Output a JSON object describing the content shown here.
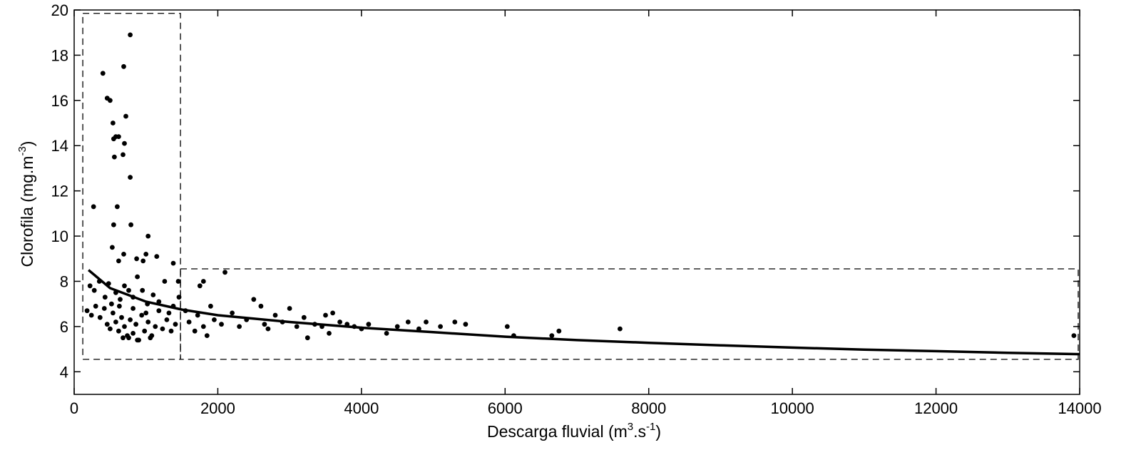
{
  "chart_data": {
    "type": "scatter",
    "title": "",
    "xlabel": {
      "base": "Descarga fluvial (m",
      "sup1": "3",
      "mid": ".s",
      "sup2": "-1",
      "end": ")"
    },
    "ylabel": {
      "base": "Clorofila (mg.m",
      "sup": "-3",
      "end": ")"
    },
    "xlim": [
      0,
      14000
    ],
    "ylim": [
      3,
      20
    ],
    "xticks": [
      "0",
      "2000",
      "4000",
      "6000",
      "8000",
      "10000",
      "12000",
      "14000"
    ],
    "yticks": [
      "4",
      "6",
      "8",
      "10",
      "12",
      "14",
      "16",
      "18",
      "20"
    ],
    "grid": false,
    "colors": {
      "points": "#000000",
      "fit": "#000000",
      "boxes": "#000000",
      "axes": "#000000"
    },
    "fit_curve": {
      "type": "power",
      "x": [
        200,
        500,
        1000,
        1500,
        2000,
        3000,
        4000,
        5000,
        6000,
        7000,
        8000,
        9000,
        10000,
        11000,
        12000,
        13000,
        14000
      ],
      "y": [
        8.5,
        7.7,
        7.1,
        6.75,
        6.5,
        6.2,
        5.95,
        5.75,
        5.55,
        5.4,
        5.28,
        5.17,
        5.07,
        4.98,
        4.91,
        4.84,
        4.78
      ]
    },
    "regions": [
      {
        "x0": 120,
        "x1": 1480,
        "y0": 4.55,
        "y1": 19.85
      },
      {
        "x0": 1480,
        "x1": 13980,
        "y0": 4.55,
        "y1": 8.55
      }
    ],
    "points": [
      [
        270,
        11.3
      ],
      [
        400,
        17.2
      ],
      [
        460,
        16.1
      ],
      [
        500,
        16.0
      ],
      [
        540,
        15.0
      ],
      [
        580,
        14.4
      ],
      [
        550,
        14.3
      ],
      [
        560,
        13.5
      ],
      [
        620,
        14.4
      ],
      [
        700,
        14.1
      ],
      [
        680,
        13.6
      ],
      [
        720,
        15.3
      ],
      [
        690,
        17.5
      ],
      [
        780,
        18.9
      ],
      [
        780,
        12.6
      ],
      [
        600,
        11.3
      ],
      [
        550,
        10.5
      ],
      [
        790,
        10.5
      ],
      [
        1030,
        10.0
      ],
      [
        530,
        9.5
      ],
      [
        690,
        9.2
      ],
      [
        1000,
        9.2
      ],
      [
        620,
        8.9
      ],
      [
        870,
        9.0
      ],
      [
        960,
        8.9
      ],
      [
        1150,
        9.1
      ],
      [
        1380,
        8.8
      ],
      [
        1450,
        8.0
      ],
      [
        220,
        7.8
      ],
      [
        280,
        7.6
      ],
      [
        350,
        8.0
      ],
      [
        430,
        7.3
      ],
      [
        480,
        7.9
      ],
      [
        520,
        7.0
      ],
      [
        580,
        7.5
      ],
      [
        640,
        7.2
      ],
      [
        700,
        7.8
      ],
      [
        760,
        7.6
      ],
      [
        820,
        7.3
      ],
      [
        880,
        8.2
      ],
      [
        950,
        7.6
      ],
      [
        1020,
        7.0
      ],
      [
        1100,
        7.4
      ],
      [
        1180,
        7.1
      ],
      [
        1260,
        8.0
      ],
      [
        1320,
        6.6
      ],
      [
        1380,
        6.9
      ],
      [
        1460,
        7.3
      ],
      [
        180,
        6.7
      ],
      [
        240,
        6.5
      ],
      [
        300,
        6.9
      ],
      [
        360,
        6.4
      ],
      [
        420,
        6.8
      ],
      [
        460,
        6.1
      ],
      [
        500,
        5.9
      ],
      [
        540,
        6.6
      ],
      [
        580,
        6.2
      ],
      [
        620,
        5.8
      ],
      [
        660,
        6.4
      ],
      [
        700,
        6.0
      ],
      [
        740,
        5.6
      ],
      [
        780,
        6.3
      ],
      [
        820,
        5.7
      ],
      [
        860,
        6.1
      ],
      [
        900,
        5.4
      ],
      [
        940,
        6.5
      ],
      [
        980,
        5.8
      ],
      [
        1030,
        6.2
      ],
      [
        1080,
        5.6
      ],
      [
        1130,
        6.0
      ],
      [
        1180,
        6.7
      ],
      [
        1230,
        5.9
      ],
      [
        1290,
        6.3
      ],
      [
        1350,
        5.8
      ],
      [
        1410,
        6.1
      ],
      [
        680,
        5.5
      ],
      [
        760,
        5.5
      ],
      [
        880,
        5.4
      ],
      [
        1060,
        5.5
      ],
      [
        630,
        6.9
      ],
      [
        820,
        6.8
      ],
      [
        1000,
        6.6
      ],
      [
        1550,
        6.7
      ],
      [
        1600,
        6.2
      ],
      [
        1680,
        5.8
      ],
      [
        1720,
        6.5
      ],
      [
        1800,
        6.0
      ],
      [
        1850,
        5.6
      ],
      [
        1900,
        6.9
      ],
      [
        1950,
        6.3
      ],
      [
        1750,
        7.8
      ],
      [
        1800,
        8.0
      ],
      [
        2100,
        8.4
      ],
      [
        2050,
        6.1
      ],
      [
        2200,
        6.6
      ],
      [
        2300,
        6.0
      ],
      [
        2400,
        6.3
      ],
      [
        2500,
        7.2
      ],
      [
        2600,
        6.9
      ],
      [
        2650,
        6.1
      ],
      [
        2700,
        5.9
      ],
      [
        2800,
        6.5
      ],
      [
        2900,
        6.2
      ],
      [
        3000,
        6.8
      ],
      [
        3100,
        6.0
      ],
      [
        3200,
        6.4
      ],
      [
        3250,
        5.5
      ],
      [
        3350,
        6.1
      ],
      [
        3450,
        6.0
      ],
      [
        3500,
        6.5
      ],
      [
        3550,
        5.7
      ],
      [
        3600,
        6.6
      ],
      [
        3700,
        6.2
      ],
      [
        3800,
        6.1
      ],
      [
        3900,
        6.0
      ],
      [
        4000,
        5.9
      ],
      [
        4100,
        6.1
      ],
      [
        4350,
        5.7
      ],
      [
        4500,
        6.0
      ],
      [
        4650,
        6.2
      ],
      [
        4800,
        5.9
      ],
      [
        4900,
        6.2
      ],
      [
        5100,
        6.0
      ],
      [
        5300,
        6.2
      ],
      [
        5450,
        6.1
      ],
      [
        6030,
        6.0
      ],
      [
        6120,
        5.6
      ],
      [
        6650,
        5.6
      ],
      [
        6750,
        5.8
      ],
      [
        7600,
        5.9
      ],
      [
        13920,
        5.6
      ]
    ]
  }
}
